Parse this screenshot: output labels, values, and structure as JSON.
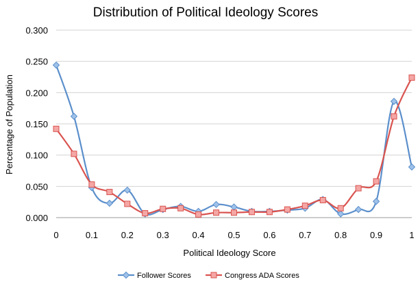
{
  "chart_data": {
    "type": "line",
    "title": "Distribution of Political Ideology Scores",
    "xlabel": "Political Ideology Score",
    "ylabel": "Percentage of Population",
    "xlim": [
      0,
      1
    ],
    "ylim": [
      0,
      0.3
    ],
    "x_ticks": [
      "0",
      "0.1",
      "0.2",
      "0.3",
      "0.4",
      "0.5",
      "0.6",
      "0.7",
      "0.8",
      "0.9",
      "1"
    ],
    "y_ticks": [
      "0.000",
      "0.050",
      "0.100",
      "0.150",
      "0.200",
      "0.250",
      "0.300"
    ],
    "grid": "horizontal",
    "legend_position": "bottom",
    "x": [
      0,
      0.05,
      0.1,
      0.15,
      0.2,
      0.25,
      0.3,
      0.35,
      0.4,
      0.45,
      0.5,
      0.55,
      0.6,
      0.65,
      0.7,
      0.75,
      0.8,
      0.85,
      0.9,
      0.95,
      1
    ],
    "series": [
      {
        "name": "Follower Scores",
        "color": "#5b8fcb",
        "marker": "diamond",
        "values": [
          0.244,
          0.162,
          0.048,
          0.023,
          0.044,
          0.006,
          0.013,
          0.018,
          0.01,
          0.021,
          0.017,
          0.01,
          0.01,
          0.012,
          0.015,
          0.029,
          0.006,
          0.013,
          0.026,
          0.186,
          0.081
        ]
      },
      {
        "name": "Congress ADA Scores",
        "color": "#d9534f",
        "marker": "square",
        "values": [
          0.142,
          0.102,
          0.053,
          0.041,
          0.022,
          0.007,
          0.014,
          0.015,
          0.005,
          0.008,
          0.008,
          0.009,
          0.009,
          0.013,
          0.019,
          0.028,
          0.015,
          0.047,
          0.058,
          0.162,
          0.224
        ]
      }
    ]
  }
}
